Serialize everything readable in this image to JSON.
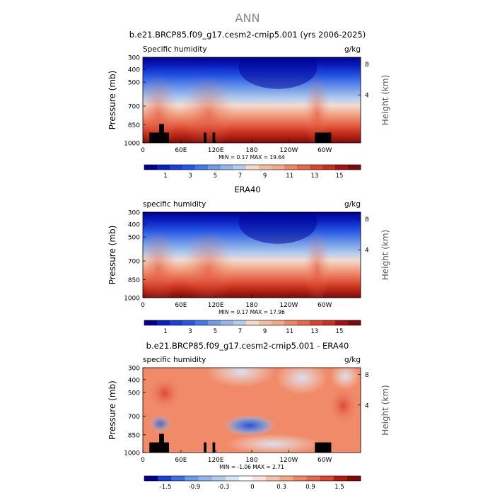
{
  "figure_title": "ANN",
  "chart_data": [
    {
      "type": "heatmap",
      "title": "b.e21.BRCP85.f09_g17.cesm2-cmip5.001 (yrs 2006-2025)",
      "left_label": "Specific humidity",
      "right_label": "g/kg",
      "ylabel": "Pressure (mb)",
      "ylabel_right": "Height (km)",
      "x_ticks": [
        "0",
        "60E",
        "120E",
        "180",
        "120W",
        "60W"
      ],
      "y_ticks": [
        "300",
        "400",
        "500",
        "700",
        "850",
        "1000"
      ],
      "height_ticks": [
        "8",
        "4"
      ],
      "stats": {
        "min_label": "MIN =",
        "min": "0.17",
        "max_label": "MAX =",
        "max": "19.64"
      },
      "colorbar_ticks": [
        "1",
        "3",
        "5",
        "7",
        "9",
        "11",
        "13",
        "15"
      ],
      "colormap": "blue-white-red",
      "terrain_mask": true
    },
    {
      "type": "heatmap",
      "title": "ERA40",
      "left_label": "specific humidity",
      "right_label": "g/kg",
      "ylabel": "Pressure (mb)",
      "ylabel_right": "Height (km)",
      "x_ticks": [
        "0",
        "60E",
        "120E",
        "180",
        "120W",
        "60W"
      ],
      "y_ticks": [
        "300",
        "400",
        "500",
        "700",
        "850",
        "1000"
      ],
      "height_ticks": [
        "8",
        "4"
      ],
      "stats": {
        "min_label": "MIN =",
        "min": "0.17",
        "max_label": "MAX =",
        "max": "17.96"
      },
      "colorbar_ticks": [
        "1",
        "3",
        "5",
        "7",
        "9",
        "11",
        "13",
        "15"
      ],
      "colormap": "blue-white-red",
      "terrain_mask": false
    },
    {
      "type": "heatmap",
      "title": "b.e21.BRCP85.f09_g17.cesm2-cmip5.001 - ERA40",
      "left_label": "specific humidity",
      "right_label": "g/kg",
      "ylabel": "Pressure (mb)",
      "ylabel_right": "Height (km)",
      "x_ticks": [
        "0",
        "60E",
        "120E",
        "180",
        "120W",
        "60W"
      ],
      "y_ticks": [
        "300",
        "400",
        "500",
        "700",
        "850",
        "1000"
      ],
      "height_ticks": [
        "8",
        "4"
      ],
      "stats": {
        "min_label": "MIN =",
        "min": "-1.06",
        "max_label": "MAX =",
        "max": "2.71"
      },
      "colorbar_ticks": [
        "-1.5",
        "-0.9",
        "-0.3",
        "0",
        "0.3",
        "0.9",
        "1.5"
      ],
      "colormap": "blue-white-red",
      "terrain_mask": true
    }
  ]
}
